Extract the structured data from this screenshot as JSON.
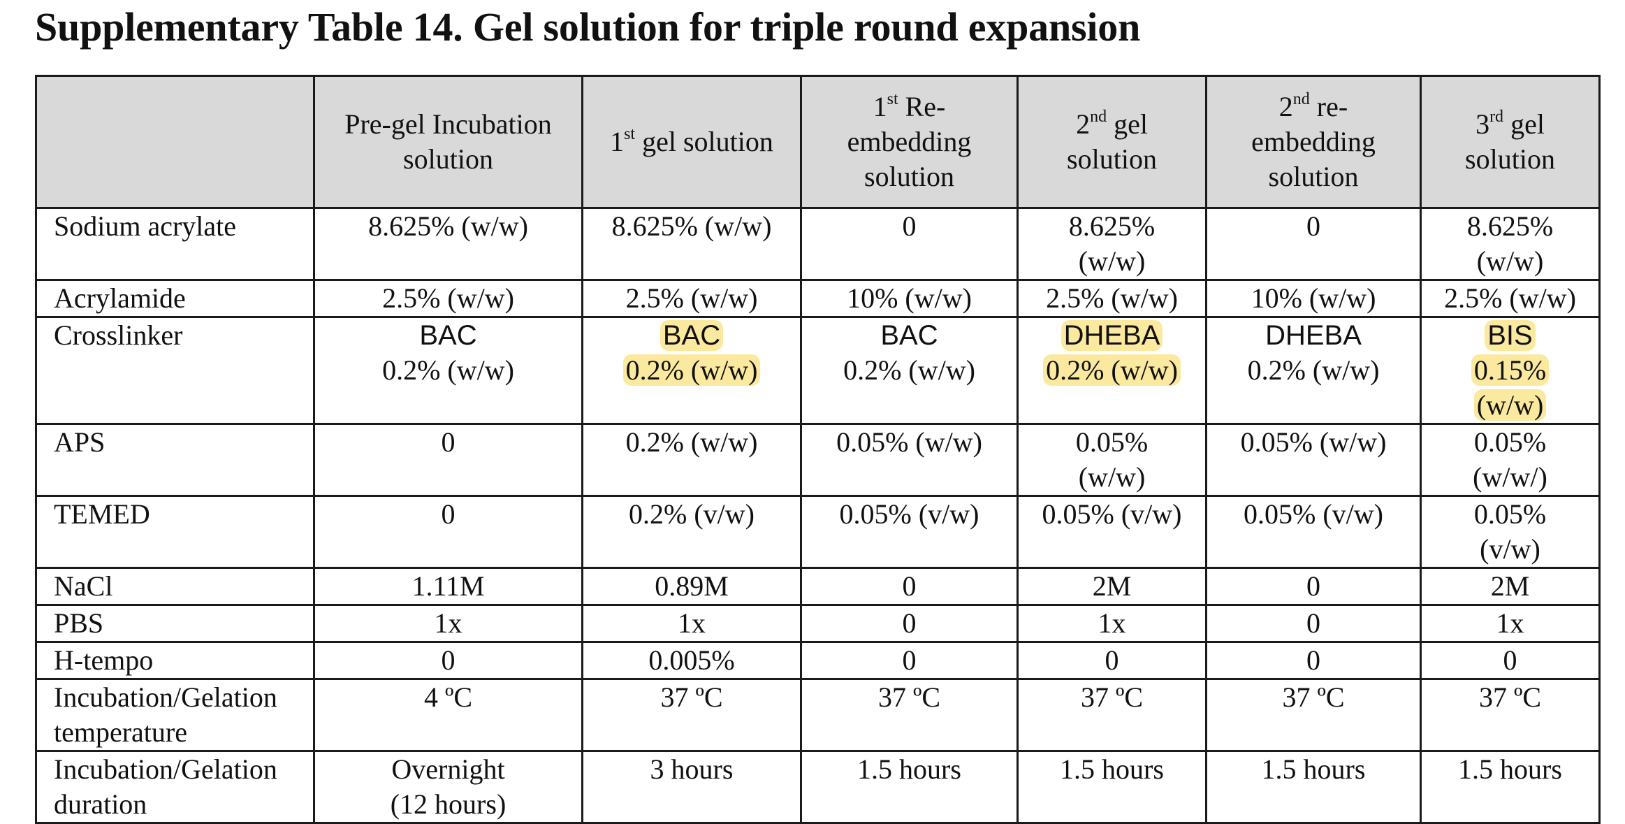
{
  "title": "Supplementary Table 14. Gel solution for triple round expansion",
  "headers": {
    "corner": "",
    "c1": [
      "Pre-gel Incubation",
      "solution"
    ],
    "c2": {
      "pre": "1",
      "sup": "st",
      "post": " gel solution"
    },
    "c3": {
      "pre": "1",
      "sup": "st",
      "post": " Re-",
      "line2": "embedding",
      "line3": "solution"
    },
    "c4": {
      "pre": "2",
      "sup": "nd",
      "post": " gel",
      "line2": "solution"
    },
    "c5": {
      "pre": "2",
      "sup": "nd",
      "post": " re-",
      "line2": "embedding",
      "line3": "solution"
    },
    "c6": {
      "pre": "3",
      "sup": "rd",
      "post": " gel",
      "line2": "solution"
    }
  },
  "rows": {
    "sodium_acrylate": {
      "label": "Sodium acrylate",
      "c1": "8.625% (w/w)",
      "c2": "8.625% (w/w)",
      "c3": "0",
      "c4": [
        "8.625%",
        "(w/w)"
      ],
      "c5": "0",
      "c6": [
        "8.625%",
        "(w/w)"
      ]
    },
    "acrylamide": {
      "label": "Acrylamide",
      "c1": "2.5% (w/w)",
      "c2": "2.5% (w/w)",
      "c3": "10% (w/w)",
      "c4": "2.5% (w/w)",
      "c5": "10% (w/w)",
      "c6": "2.5% (w/w)"
    },
    "crosslinker": {
      "label": "Crosslinker",
      "c1": [
        "BAC",
        "0.2% (w/w)"
      ],
      "c2": [
        "BAC",
        "0.2% (w/w)"
      ],
      "c3": [
        "BAC",
        "0.2% (w/w)"
      ],
      "c4": [
        "DHEBA",
        "0.2% (w/w)"
      ],
      "c5": [
        "DHEBA",
        "0.2% (w/w)"
      ],
      "c6": [
        "BIS",
        "0.15%",
        "(w/w)"
      ]
    },
    "aps": {
      "label": "APS",
      "c1": "0",
      "c2": "0.2% (w/w)",
      "c3": "0.05% (w/w)",
      "c4": [
        "0.05%",
        "(w/w)"
      ],
      "c5": "0.05% (w/w)",
      "c6": [
        "0.05%",
        "(w/w/)"
      ]
    },
    "temed": {
      "label": "TEMED",
      "c1": "0",
      "c2": "0.2% (v/w)",
      "c3": "0.05% (v/w)",
      "c4": "0.05% (v/w)",
      "c5": "0.05% (v/w)",
      "c6": [
        "0.05%",
        "(v/w)"
      ]
    },
    "nacl": {
      "label": "NaCl",
      "c1": "1.11M",
      "c2": "0.89M",
      "c3": "0",
      "c4": "2M",
      "c5": "0",
      "c6": "2M"
    },
    "pbs": {
      "label": "PBS",
      "c1": "1x",
      "c2": "1x",
      "c3": "0",
      "c4": "1x",
      "c5": "0",
      "c6": "1x"
    },
    "h_tempo": {
      "label": "H-tempo",
      "c1": "0",
      "c2": "0.005%",
      "c3": "0",
      "c4": "0",
      "c5": "0",
      "c6": "0"
    },
    "temperature": {
      "label": [
        "Incubation/Gelation",
        "temperature"
      ],
      "c1": "4 ºC",
      "c2": "37 ºC",
      "c3": "37 ºC",
      "c4": "37 ºC",
      "c5": "37 ºC",
      "c6": "37 ºC"
    },
    "duration": {
      "label": [
        "Incubation/Gelation",
        "duration"
      ],
      "c1": [
        "Overnight",
        "(12 hours)"
      ],
      "c2": "3 hours",
      "c3": "1.5 hours",
      "c4": "1.5 hours",
      "c5": "1.5 hours",
      "c6": "1.5 hours"
    }
  },
  "highlight_color": "#fbe9a0",
  "header_background": "#d9d9d9"
}
